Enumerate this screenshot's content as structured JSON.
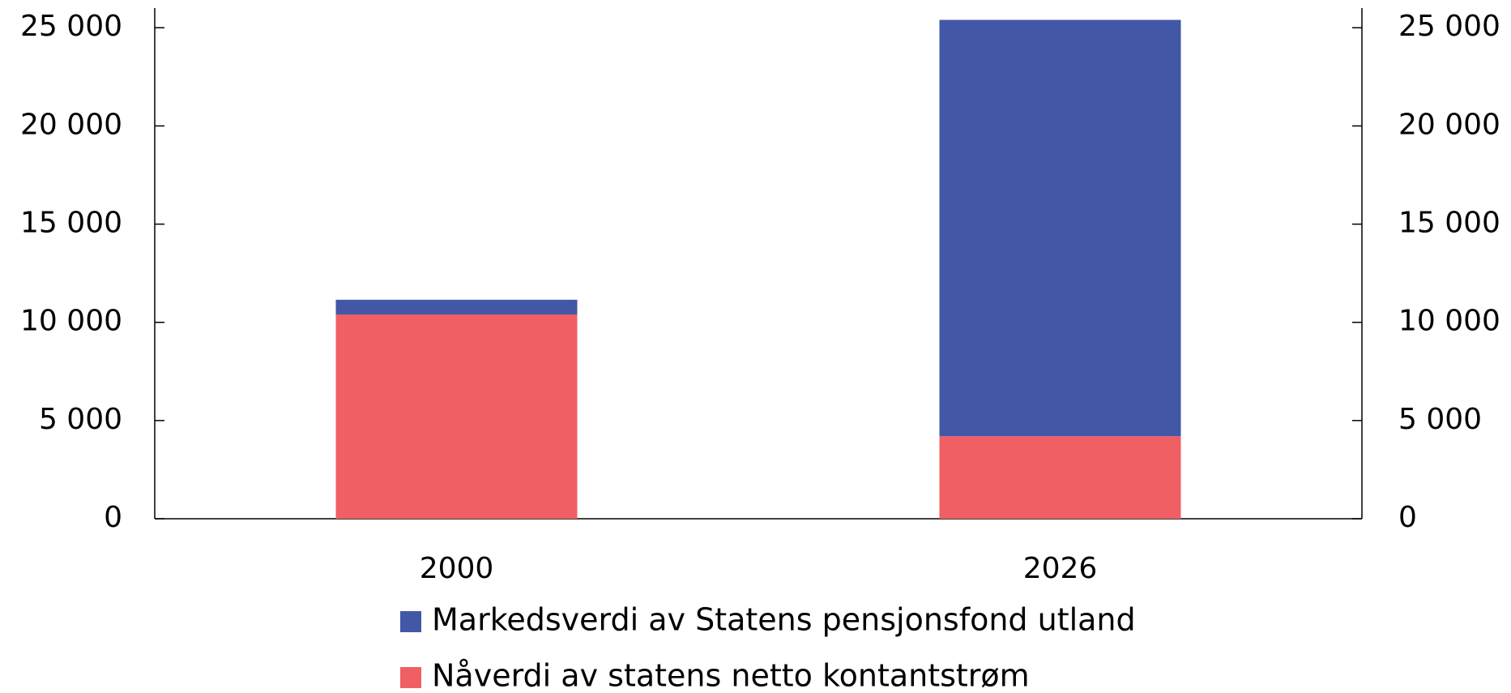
{
  "chart_data": {
    "type": "stacked_bar",
    "categories": [
      "2000",
      "2026"
    ],
    "series": [
      {
        "name": "Markedsverdi av Statens pensjonsfond utland",
        "color": "#4257a6",
        "values": [
          750,
          21200
        ]
      },
      {
        "name": "Nåverdi av statens netto kontantstrøm",
        "color": "#f05f63",
        "values": [
          10400,
          4200
        ]
      }
    ],
    "ylim": [
      0,
      26000
    ],
    "yticks": [
      0,
      {
        "value": 5000,
        "label": "5 000"
      },
      {
        "value": 10000,
        "label": "10 000"
      },
      {
        "value": 15000,
        "label": "15 000"
      },
      {
        "value": 20000,
        "label": "20 000"
      },
      {
        "value": 25000,
        "label": "25 000"
      }
    ],
    "y2lim": [
      0,
      26000
    ],
    "y2ticks": [
      0,
      {
        "value": 5000,
        "label": "5 000"
      },
      {
        "value": 10000,
        "label": "10 000"
      },
      {
        "value": 15000,
        "label": "15 000"
      },
      {
        "value": 20000,
        "label": "20 000"
      },
      {
        "value": 25000,
        "label": "25 000"
      }
    ],
    "legend": "bottom",
    "grid": false
  }
}
